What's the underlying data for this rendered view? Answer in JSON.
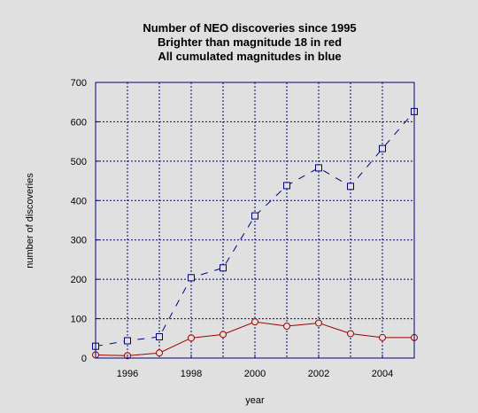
{
  "chart_data": {
    "type": "line",
    "title": [
      "Number of NEO discoveries since 1995",
      "Brighter than magnitude 18 in red",
      "All cumulated magnitudes in blue"
    ],
    "xlabel": "year",
    "ylabel": "number of discoveries",
    "xlim": [
      1995,
      2005
    ],
    "ylim": [
      0,
      700
    ],
    "x_ticks": [
      1996,
      1998,
      2000,
      2002,
      2004
    ],
    "y_ticks": [
      0,
      100,
      200,
      300,
      400,
      500,
      600,
      700
    ],
    "grid": true,
    "x": [
      1995,
      1996,
      1997,
      1998,
      1999,
      2000,
      2001,
      2002,
      2003,
      2004,
      2005
    ],
    "series": [
      {
        "color": "#000080",
        "line": "dashed",
        "marker": "square",
        "values": [
          30,
          44,
          54,
          204,
          229,
          361,
          438,
          483,
          436,
          532,
          626
        ]
      },
      {
        "color": "#a00000",
        "line": "solid",
        "marker": "circle",
        "values": [
          8,
          6,
          13,
          51,
          60,
          92,
          81,
          89,
          62,
          52,
          52
        ]
      }
    ],
    "background_color": "#e0e0e0",
    "grid_color": "#000080",
    "axis_color": "#000080"
  }
}
